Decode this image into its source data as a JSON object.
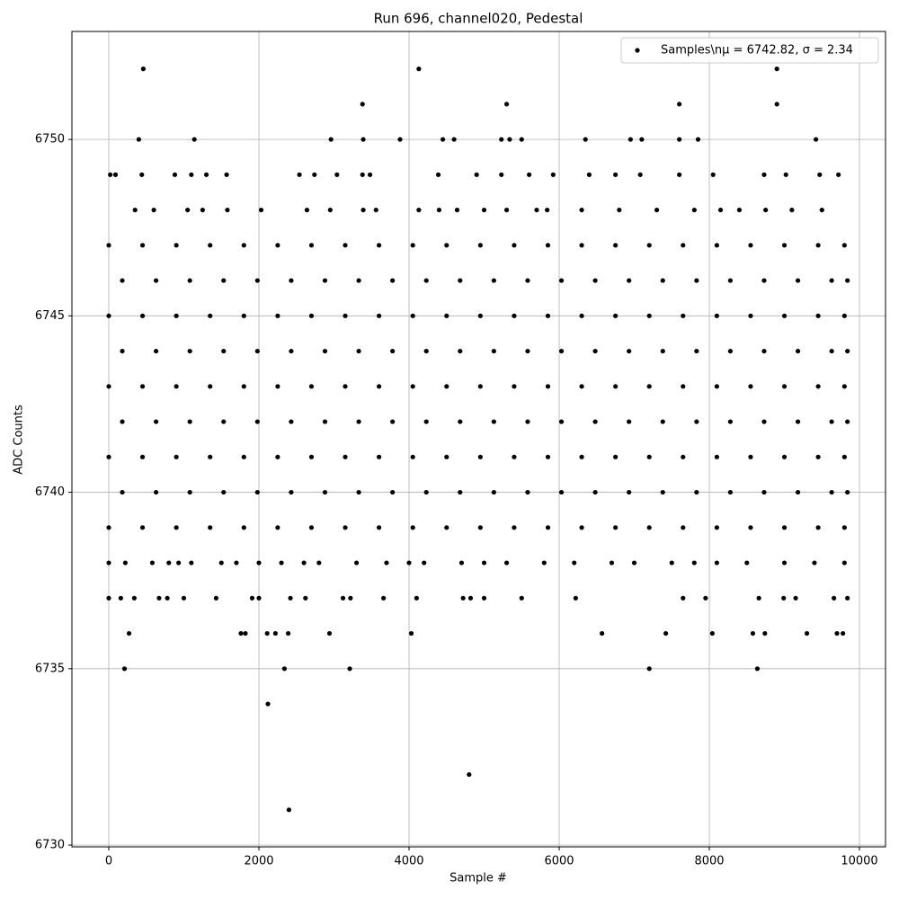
{
  "chart_data": {
    "type": "scatter",
    "title": "Run 696, channel020, Pedestal",
    "xlabel": "Sample #",
    "ylabel": "ADC Counts",
    "xlim": [
      -491,
      10347
    ],
    "ylim": [
      6729.95,
      6753.06
    ],
    "xticks": [
      0,
      2000,
      4000,
      6000,
      8000,
      10000
    ],
    "yticks": [
      6730,
      6735,
      6740,
      6745,
      6750
    ],
    "grid": true,
    "legend": "upper right",
    "series": [
      {
        "name": "Samples\\nμ = 6742.82, σ = 2.34",
        "color": "#000000",
        "x": [
          460,
          4130,
          8900,
          3380,
          5300,
          7600,
          8900,
          400,
          1140,
          2960,
          3390,
          3880,
          4450,
          4600,
          5230,
          5340,
          5500,
          6350,
          6950,
          7100,
          7600,
          7850,
          9420,
          20,
          90,
          440,
          880,
          1100,
          1300,
          1570,
          2540,
          2740,
          3040,
          3380,
          3480,
          4390,
          4900,
          5230,
          5600,
          5920,
          6400,
          6750,
          7080,
          7600,
          8050,
          8730,
          9020,
          9470,
          9720,
          350,
          600,
          1050,
          1250,
          1580,
          2030,
          2640,
          2950,
          3390,
          3560,
          4130,
          4400,
          4640,
          5000,
          5300,
          5700,
          5840,
          6300,
          6800,
          7300,
          7800,
          8150,
          8400,
          8750,
          9100,
          9500,
          0,
          450,
          900,
          1350,
          1800,
          2250,
          2700,
          3150,
          3600,
          4050,
          4500,
          4950,
          5400,
          5850,
          6300,
          6750,
          7200,
          7650,
          8100,
          8550,
          9000,
          9450,
          9800,
          180,
          630,
          1080,
          1530,
          1980,
          2430,
          2880,
          3330,
          3780,
          4230,
          4680,
          5130,
          5580,
          6030,
          6480,
          6930,
          7380,
          7830,
          8280,
          8730,
          9180,
          9630,
          9840,
          0,
          450,
          900,
          1350,
          1800,
          2250,
          2700,
          3150,
          3600,
          4050,
          4500,
          4950,
          5400,
          5850,
          6300,
          6750,
          7200,
          7650,
          8100,
          8550,
          9000,
          9450,
          9800,
          180,
          630,
          1080,
          1530,
          1980,
          2430,
          2880,
          3330,
          3780,
          4230,
          4680,
          5130,
          5580,
          6030,
          6480,
          6930,
          7380,
          7830,
          8280,
          8730,
          9180,
          9630,
          9840,
          0,
          450,
          900,
          1350,
          1800,
          2250,
          2700,
          3150,
          3600,
          4050,
          4500,
          4950,
          5400,
          5850,
          6300,
          6750,
          7200,
          7650,
          8100,
          8550,
          9000,
          9450,
          9800,
          180,
          630,
          1080,
          1530,
          1980,
          2430,
          2880,
          3330,
          3780,
          4230,
          4680,
          5130,
          5580,
          6030,
          6480,
          6930,
          7380,
          7830,
          8280,
          8730,
          9180,
          9630,
          9840,
          0,
          450,
          900,
          1350,
          1800,
          2250,
          2700,
          3150,
          3600,
          4050,
          4500,
          4950,
          5400,
          5850,
          6300,
          6750,
          7200,
          7650,
          8100,
          8550,
          9000,
          9450,
          9800,
          180,
          630,
          1080,
          1530,
          1980,
          2430,
          2880,
          3330,
          3780,
          4230,
          4680,
          5130,
          5580,
          6030,
          6480,
          6930,
          7380,
          7830,
          8280,
          8730,
          9180,
          9630,
          9840,
          0,
          450,
          900,
          1350,
          1800,
          2250,
          2700,
          3150,
          3600,
          4050,
          4500,
          4950,
          5400,
          5850,
          6300,
          6750,
          7200,
          7650,
          8100,
          8550,
          9000,
          9450,
          9800,
          0,
          220,
          580,
          800,
          930,
          1100,
          1500,
          1700,
          2000,
          2300,
          2600,
          2800,
          3300,
          3700,
          4000,
          4200,
          4700,
          5000,
          5300,
          5800,
          6200,
          6700,
          7000,
          7500,
          7800,
          8100,
          8500,
          9000,
          9400,
          9800,
          0,
          160,
          340,
          670,
          780,
          1000,
          1430,
          1910,
          2000,
          2420,
          2620,
          3120,
          3220,
          3660,
          4100,
          4720,
          4820,
          5000,
          5500,
          6220,
          7650,
          7950,
          8660,
          8990,
          9150,
          9660,
          9840,
          270,
          1760,
          1820,
          2110,
          2220,
          2390,
          2940,
          4030,
          6570,
          7420,
          8040,
          8580,
          8740,
          9300,
          9700,
          9780,
          210,
          2340,
          3210,
          7200,
          8640,
          2120,
          4800,
          2400
        ],
        "values": [
          6752,
          6752,
          6752,
          6751,
          6751,
          6751,
          6751,
          6750,
          6750,
          6750,
          6750,
          6750,
          6750,
          6750,
          6750,
          6750,
          6750,
          6750,
          6750,
          6750,
          6750,
          6750,
          6750,
          6749,
          6749,
          6749,
          6749,
          6749,
          6749,
          6749,
          6749,
          6749,
          6749,
          6749,
          6749,
          6749,
          6749,
          6749,
          6749,
          6749,
          6749,
          6749,
          6749,
          6749,
          6749,
          6749,
          6749,
          6749,
          6749,
          6748,
          6748,
          6748,
          6748,
          6748,
          6748,
          6748,
          6748,
          6748,
          6748,
          6748,
          6748,
          6748,
          6748,
          6748,
          6748,
          6748,
          6748,
          6748,
          6748,
          6748,
          6748,
          6748,
          6748,
          6748,
          6748,
          6747,
          6747,
          6747,
          6747,
          6747,
          6747,
          6747,
          6747,
          6747,
          6747,
          6747,
          6747,
          6747,
          6747,
          6747,
          6747,
          6747,
          6747,
          6747,
          6747,
          6747,
          6747,
          6747,
          6746,
          6746,
          6746,
          6746,
          6746,
          6746,
          6746,
          6746,
          6746,
          6746,
          6746,
          6746,
          6746,
          6746,
          6746,
          6746,
          6746,
          6746,
          6746,
          6746,
          6746,
          6746,
          6746,
          6745,
          6745,
          6745,
          6745,
          6745,
          6745,
          6745,
          6745,
          6745,
          6745,
          6745,
          6745,
          6745,
          6745,
          6745,
          6745,
          6745,
          6745,
          6745,
          6745,
          6745,
          6745,
          6745,
          6744,
          6744,
          6744,
          6744,
          6744,
          6744,
          6744,
          6744,
          6744,
          6744,
          6744,
          6744,
          6744,
          6744,
          6744,
          6744,
          6744,
          6744,
          6744,
          6744,
          6744,
          6744,
          6744,
          6743,
          6743,
          6743,
          6743,
          6743,
          6743,
          6743,
          6743,
          6743,
          6743,
          6743,
          6743,
          6743,
          6743,
          6743,
          6743,
          6743,
          6743,
          6743,
          6743,
          6743,
          6743,
          6743,
          6742,
          6742,
          6742,
          6742,
          6742,
          6742,
          6742,
          6742,
          6742,
          6742,
          6742,
          6742,
          6742,
          6742,
          6742,
          6742,
          6742,
          6742,
          6742,
          6742,
          6742,
          6742,
          6742,
          6741,
          6741,
          6741,
          6741,
          6741,
          6741,
          6741,
          6741,
          6741,
          6741,
          6741,
          6741,
          6741,
          6741,
          6741,
          6741,
          6741,
          6741,
          6741,
          6741,
          6741,
          6741,
          6741,
          6740,
          6740,
          6740,
          6740,
          6740,
          6740,
          6740,
          6740,
          6740,
          6740,
          6740,
          6740,
          6740,
          6740,
          6740,
          6740,
          6740,
          6740,
          6740,
          6740,
          6740,
          6740,
          6740,
          6739,
          6739,
          6739,
          6739,
          6739,
          6739,
          6739,
          6739,
          6739,
          6739,
          6739,
          6739,
          6739,
          6739,
          6739,
          6739,
          6739,
          6739,
          6739,
          6739,
          6739,
          6739,
          6739,
          6738,
          6738,
          6738,
          6738,
          6738,
          6738,
          6738,
          6738,
          6738,
          6738,
          6738,
          6738,
          6738,
          6738,
          6738,
          6738,
          6738,
          6738,
          6738,
          6738,
          6738,
          6738,
          6738,
          6738,
          6738,
          6738,
          6738,
          6738,
          6738,
          6738,
          6737,
          6737,
          6737,
          6737,
          6737,
          6737,
          6737,
          6737,
          6737,
          6737,
          6737,
          6737,
          6737,
          6737,
          6737,
          6737,
          6737,
          6737,
          6737,
          6737,
          6737,
          6737,
          6737,
          6737,
          6737,
          6737,
          6737,
          6736,
          6736,
          6736,
          6736,
          6736,
          6736,
          6736,
          6736,
          6736,
          6736,
          6736,
          6736,
          6736,
          6736,
          6736,
          6736,
          6735,
          6735,
          6735,
          6735,
          6735,
          6734,
          6732,
          6731
        ]
      }
    ]
  }
}
